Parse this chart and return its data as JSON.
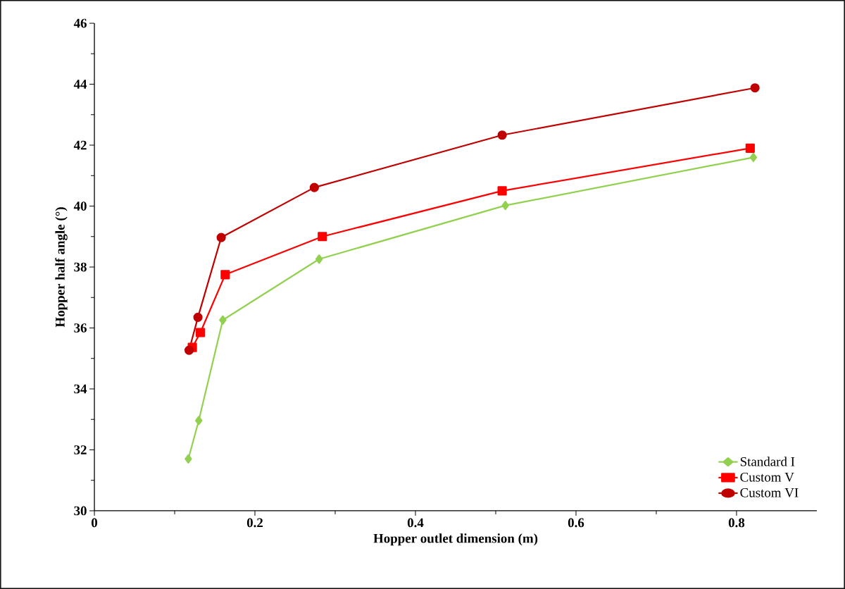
{
  "chart_data": {
    "type": "line",
    "xlabel": "Hopper outlet dimension (m)",
    "ylabel": "Hopper half angle (°)",
    "xlim": [
      0,
      0.9
    ],
    "xticks": [
      0,
      0.2,
      0.4,
      0.6,
      0.8
    ],
    "ylim": [
      30,
      46
    ],
    "yticks": [
      30,
      32,
      34,
      36,
      38,
      40,
      42,
      44,
      46
    ],
    "grid": false,
    "legend": "bottom right",
    "series": [
      {
        "name": "Standard I",
        "color": "#92d050",
        "marker": "diamond",
        "x": [
          0.117,
          0.13,
          0.16,
          0.28,
          0.512,
          0.821
        ],
        "values": [
          31.7,
          32.96,
          36.26,
          38.26,
          40.02,
          41.6
        ]
      },
      {
        "name": "Custom V",
        "color": "#ff0000",
        "marker": "square",
        "x": [
          0.122,
          0.132,
          0.163,
          0.284,
          0.508,
          0.817
        ],
        "values": [
          35.36,
          35.85,
          37.75,
          39.0,
          40.5,
          41.9
        ]
      },
      {
        "name": "Custom VI",
        "color": "#c00000",
        "marker": "circle",
        "x": [
          0.118,
          0.129,
          0.158,
          0.274,
          0.508,
          0.823
        ],
        "values": [
          35.27,
          36.35,
          38.97,
          40.61,
          42.33,
          43.88
        ]
      }
    ]
  }
}
